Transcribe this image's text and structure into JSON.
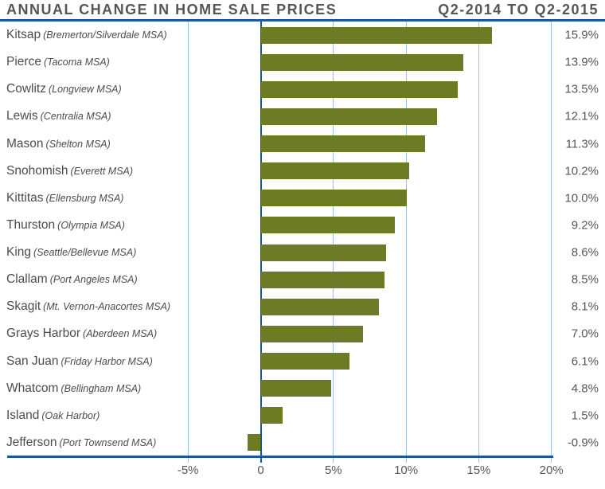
{
  "header": {
    "title": "ANNUAL CHANGE IN HOME SALE PRICES",
    "period": "Q2-2014 TO Q2-2015"
  },
  "colors": {
    "bar": "#6e7b25",
    "axis_blue": "#1d5699",
    "gridline_blue": "#a6c0dd",
    "text_gray": "#55565a"
  },
  "chart_data": {
    "type": "bar",
    "orientation": "horizontal",
    "title": "ANNUAL CHANGE IN HOME SALE PRICES",
    "subtitle": "Q2-2014 TO Q2-2015",
    "xlabel": "",
    "ylabel": "",
    "xlim": [
      -5,
      20
    ],
    "grid": "vertical-only",
    "legend": "none",
    "rows": [
      {
        "county": "Kitsap",
        "msa": "(Bremerton/Silverdale MSA)",
        "value": 15.9,
        "label": "15.9%"
      },
      {
        "county": "Pierce",
        "msa": "(Tacoma MSA)",
        "value": 13.9,
        "label": "13.9%"
      },
      {
        "county": "Cowlitz",
        "msa": "(Longview MSA)",
        "value": 13.5,
        "label": "13.5%"
      },
      {
        "county": "Lewis",
        "msa": "(Centralia MSA)",
        "value": 12.1,
        "label": "12.1%"
      },
      {
        "county": "Mason",
        "msa": "(Shelton MSA)",
        "value": 11.3,
        "label": "11.3%"
      },
      {
        "county": "Snohomish",
        "msa": "(Everett MSA)",
        "value": 10.2,
        "label": "10.2%"
      },
      {
        "county": "Kittitas",
        "msa": "(Ellensburg MSA)",
        "value": 10.0,
        "label": "10.0%"
      },
      {
        "county": "Thurston",
        "msa": "(Olympia MSA)",
        "value": 9.2,
        "label": "9.2%"
      },
      {
        "county": "King",
        "msa": "(Seattle/Bellevue MSA)",
        "value": 8.6,
        "label": "8.6%"
      },
      {
        "county": "Clallam",
        "msa": "(Port Angeles MSA)",
        "value": 8.5,
        "label": "8.5%"
      },
      {
        "county": "Skagit",
        "msa": "(Mt. Vernon-Anacortes MSA)",
        "value": 8.1,
        "label": "8.1%"
      },
      {
        "county": "Grays Harbor",
        "msa": "(Aberdeen MSA)",
        "value": 7.0,
        "label": "7.0%"
      },
      {
        "county": "San Juan",
        "msa": "(Friday Harbor MSA)",
        "value": 6.1,
        "label": "6.1%"
      },
      {
        "county": "Whatcom",
        "msa": "(Bellingham MSA)",
        "value": 4.8,
        "label": "4.8%"
      },
      {
        "county": "Island",
        "msa": "(Oak Harbor)",
        "value": 1.5,
        "label": "1.5%"
      },
      {
        "county": "Jefferson",
        "msa": "(Port Townsend MSA)",
        "value": -0.9,
        "label": "-0.9%"
      }
    ],
    "ticks": [
      {
        "value": -5,
        "label": "-5%"
      },
      {
        "value": 0,
        "label": "0"
      },
      {
        "value": 5,
        "label": "5%"
      },
      {
        "value": 10,
        "label": "10%"
      },
      {
        "value": 15,
        "label": "15%"
      },
      {
        "value": 20,
        "label": "20%"
      }
    ]
  }
}
